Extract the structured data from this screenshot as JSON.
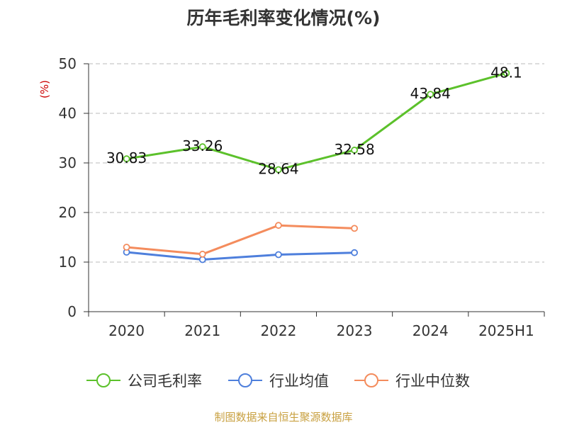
{
  "title": "历年毛利率变化情况(%)",
  "source": "制图数据来自恒生聚源数据库",
  "colors": {
    "company": "#5cc12b",
    "industry_avg": "#4e7fdc",
    "industry_median": "#f48c5d",
    "ylabel": "#cc0000",
    "source": "#c8a040",
    "axis": "#333333",
    "grid": "#bbbbbb"
  },
  "chart_data": {
    "type": "line",
    "title": "历年毛利率变化情况(%)",
    "xlabel": "",
    "ylabel": "(%)",
    "categories": [
      "2020",
      "2021",
      "2022",
      "2023",
      "2024",
      "2025H1"
    ],
    "ylim": [
      0,
      50
    ],
    "yticks": [
      0,
      10,
      20,
      30,
      40,
      50
    ],
    "grid": true,
    "legend_position": "bottom",
    "series": [
      {
        "name": "公司毛利率",
        "values": [
          30.83,
          33.26,
          28.64,
          32.58,
          43.84,
          48.1
        ],
        "labels": [
          "30.83",
          "33.26",
          "28.64",
          "32.58",
          "43.84",
          "48.1"
        ],
        "color_key": "company"
      },
      {
        "name": "行业均值",
        "values": [
          12.0,
          10.5,
          11.5,
          11.9,
          null,
          null
        ],
        "labels": [],
        "color_key": "industry_avg"
      },
      {
        "name": "行业中位数",
        "values": [
          13.0,
          11.6,
          17.4,
          16.8,
          null,
          null
        ],
        "labels": [],
        "color_key": "industry_median"
      }
    ]
  }
}
